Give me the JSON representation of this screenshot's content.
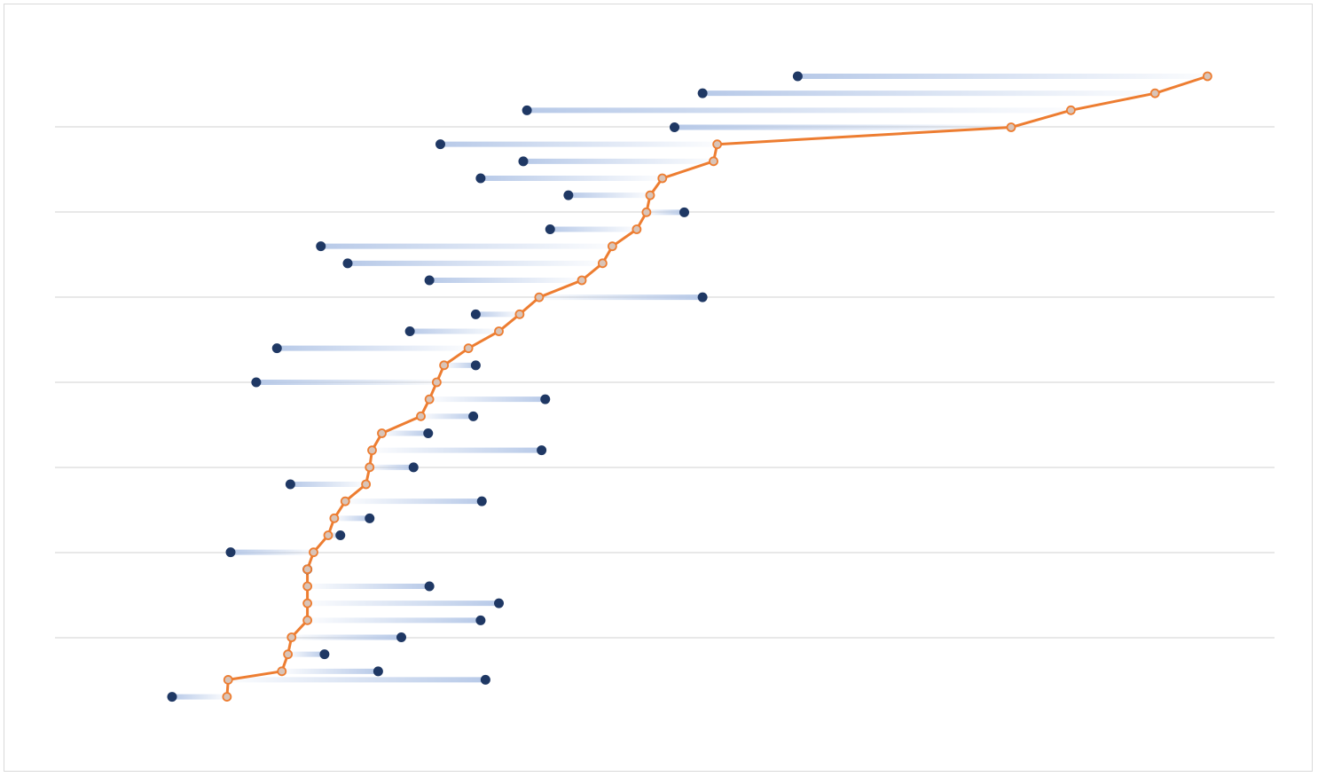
{
  "chart_data": {
    "type": "line",
    "title": "",
    "xlabel": "",
    "ylabel": "",
    "grid": true,
    "legend": "none",
    "xlim": [
      0,
      100
    ],
    "ylim": [
      0,
      36
    ],
    "series": [
      {
        "kind": "line-with-markers",
        "values": [
          {
            "x": 94.5,
            "y": 36
          },
          {
            "x": 90.2,
            "y": 35
          },
          {
            "x": 83.3,
            "y": 34
          },
          {
            "x": 78.4,
            "y": 33
          },
          {
            "x": 54.3,
            "y": 32
          },
          {
            "x": 54.0,
            "y": 31
          },
          {
            "x": 49.8,
            "y": 30
          },
          {
            "x": 48.8,
            "y": 29
          },
          {
            "x": 48.5,
            "y": 28
          },
          {
            "x": 47.7,
            "y": 27
          },
          {
            "x": 45.7,
            "y": 26
          },
          {
            "x": 44.9,
            "y": 25
          },
          {
            "x": 43.2,
            "y": 24
          },
          {
            "x": 39.7,
            "y": 23
          },
          {
            "x": 38.1,
            "y": 22
          },
          {
            "x": 36.4,
            "y": 21
          },
          {
            "x": 33.9,
            "y": 20
          },
          {
            "x": 31.9,
            "y": 19
          },
          {
            "x": 31.3,
            "y": 18
          },
          {
            "x": 30.7,
            "y": 17
          },
          {
            "x": 30.0,
            "y": 16
          },
          {
            "x": 26.8,
            "y": 15
          },
          {
            "x": 26.0,
            "y": 14
          },
          {
            "x": 25.8,
            "y": 13
          },
          {
            "x": 25.5,
            "y": 12
          },
          {
            "x": 23.8,
            "y": 11
          },
          {
            "x": 22.9,
            "y": 10
          },
          {
            "x": 22.4,
            "y": 9
          },
          {
            "x": 21.2,
            "y": 8
          },
          {
            "x": 20.7,
            "y": 7
          },
          {
            "x": 20.7,
            "y": 6
          },
          {
            "x": 20.7,
            "y": 5
          },
          {
            "x": 20.7,
            "y": 4
          },
          {
            "x": 19.4,
            "y": 3
          },
          {
            "x": 19.1,
            "y": 2
          },
          {
            "x": 18.6,
            "y": 1
          },
          {
            "x": 14.2,
            "y": 0.5
          },
          {
            "x": 14.1,
            "y": -0.5
          }
        ]
      },
      {
        "kind": "dots",
        "values": [
          {
            "x": 60.9,
            "y": 36
          },
          {
            "x": 53.1,
            "y": 35
          },
          {
            "x": 38.7,
            "y": 34
          },
          {
            "x": 50.8,
            "y": 33
          },
          {
            "x": 31.6,
            "y": 32
          },
          {
            "x": 38.4,
            "y": 31
          },
          {
            "x": 34.9,
            "y": 30
          },
          {
            "x": 42.1,
            "y": 29
          },
          {
            "x": 51.6,
            "y": 28
          },
          {
            "x": 40.6,
            "y": 27
          },
          {
            "x": 21.8,
            "y": 26
          },
          {
            "x": 24.0,
            "y": 25
          },
          {
            "x": 30.7,
            "y": 24
          },
          {
            "x": 53.1,
            "y": 23
          },
          {
            "x": 34.5,
            "y": 22
          },
          {
            "x": 29.1,
            "y": 21
          },
          {
            "x": 18.2,
            "y": 20
          },
          {
            "x": 34.5,
            "y": 19
          },
          {
            "x": 16.5,
            "y": 18
          },
          {
            "x": 40.2,
            "y": 17
          },
          {
            "x": 34.3,
            "y": 16
          },
          {
            "x": 30.6,
            "y": 15
          },
          {
            "x": 39.9,
            "y": 14
          },
          {
            "x": 29.4,
            "y": 13
          },
          {
            "x": 19.3,
            "y": 12
          },
          {
            "x": 35.0,
            "y": 11
          },
          {
            "x": 25.8,
            "y": 10
          },
          {
            "x": 23.4,
            "y": 9
          },
          {
            "x": 14.4,
            "y": 8
          },
          {
            "x": 20.7,
            "y": 7
          },
          {
            "x": 30.7,
            "y": 6
          },
          {
            "x": 36.4,
            "y": 5
          },
          {
            "x": 34.9,
            "y": 4
          },
          {
            "x": 28.4,
            "y": 3
          },
          {
            "x": 22.1,
            "y": 2
          },
          {
            "x": 26.5,
            "y": 1
          },
          {
            "x": 35.3,
            "y": 0.5
          },
          {
            "x": 9.6,
            "y": -0.5
          }
        ]
      }
    ]
  },
  "colors": {
    "line": "#ed7d31",
    "marker_fill": "#d9c4b8",
    "dot": "#1f3864",
    "connector": "#b4c7e7",
    "grid": "#d9d9d9",
    "border": "#d9d9d9"
  }
}
